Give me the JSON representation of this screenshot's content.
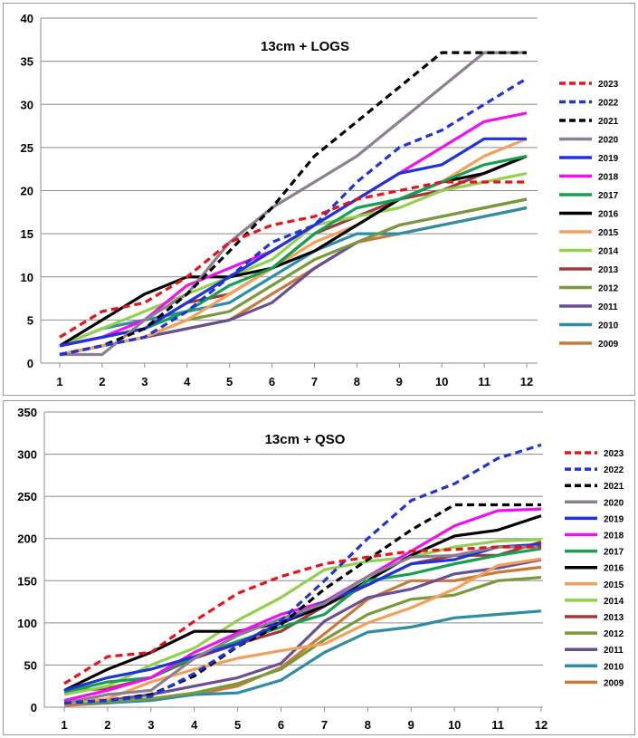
{
  "chart_data": [
    {
      "type": "line",
      "title": "13cm + LOGS",
      "xlabel": "",
      "ylabel": "",
      "ylim": [
        0,
        40
      ],
      "yticks": [
        0,
        5,
        10,
        15,
        20,
        25,
        30,
        35,
        40
      ],
      "categories": [
        "1",
        "2",
        "3",
        "4",
        "5",
        "6",
        "7",
        "8",
        "9",
        "10",
        "11",
        "12"
      ],
      "grid": "horizontal",
      "legend": "right",
      "series": [
        {
          "name": "2023",
          "color": "#e8121c",
          "dash": "dashed",
          "values": [
            3,
            6,
            7,
            10,
            14,
            16,
            17,
            19,
            20,
            21,
            21,
            21
          ]
        },
        {
          "name": "2022",
          "color": "#1f33d6",
          "dash": "dashed",
          "values": [
            1,
            2,
            3,
            6,
            10,
            14,
            16,
            21,
            25,
            27,
            30,
            33
          ]
        },
        {
          "name": "2021",
          "color": "#000000",
          "dash": "dashed",
          "values": [
            1,
            2,
            4,
            8,
            13,
            18,
            24,
            28,
            32,
            36,
            36,
            36
          ]
        },
        {
          "name": "2020",
          "color": "#8c7f91",
          "dash": "solid",
          "values": [
            1,
            1,
            5,
            8,
            14,
            18,
            21,
            24,
            28,
            32,
            36,
            36
          ]
        },
        {
          "name": "2019",
          "color": "#1f33d6",
          "dash": "solid",
          "values": [
            2,
            3,
            4,
            7,
            10,
            13,
            16,
            19,
            22,
            23,
            26,
            26
          ]
        },
        {
          "name": "2018",
          "color": "#ee11ee",
          "dash": "solid",
          "values": [
            2,
            3,
            5,
            9,
            11,
            13,
            16,
            19,
            22,
            25,
            28,
            29
          ]
        },
        {
          "name": "2017",
          "color": "#14a050",
          "dash": "solid",
          "values": [
            2,
            3,
            4,
            6,
            9,
            11,
            15,
            18,
            19,
            21,
            23,
            24
          ]
        },
        {
          "name": "2016",
          "color": "#000000",
          "dash": "solid",
          "values": [
            2,
            5,
            8,
            10,
            10,
            11,
            13,
            16,
            19,
            21,
            22,
            24
          ]
        },
        {
          "name": "2015",
          "color": "#f2a05a",
          "dash": "solid",
          "values": [
            1,
            2,
            3,
            5,
            8,
            11,
            14,
            16,
            19,
            21,
            24,
            26
          ]
        },
        {
          "name": "2014",
          "color": "#92d050",
          "dash": "solid",
          "values": [
            2,
            4,
            6,
            8,
            10,
            12,
            16,
            17,
            18,
            20,
            21,
            22
          ]
        },
        {
          "name": "2013",
          "color": "#a0393c",
          "dash": "solid",
          "values": [
            2,
            3,
            4,
            7,
            8,
            11,
            15,
            17,
            19,
            20,
            22,
            24
          ]
        },
        {
          "name": "2012",
          "color": "#7a9a3a",
          "dash": "solid",
          "values": [
            1,
            2,
            3,
            5,
            6,
            9,
            12,
            14,
            16,
            17,
            18,
            19
          ]
        },
        {
          "name": "2011",
          "color": "#6a4e94",
          "dash": "solid",
          "values": [
            1,
            2,
            3,
            4,
            5,
            7,
            11,
            14,
            16,
            17,
            18,
            19
          ]
        },
        {
          "name": "2010",
          "color": "#2e8ca6",
          "dash": "solid",
          "values": [
            2,
            4,
            5,
            6,
            7,
            10,
            13,
            15,
            15,
            16,
            17,
            18
          ]
        },
        {
          "name": "2009",
          "color": "#c87a3a",
          "dash": "solid",
          "values": [
            1,
            2,
            3,
            4,
            5,
            8,
            11,
            14,
            15,
            16,
            17,
            18
          ]
        }
      ]
    },
    {
      "type": "line",
      "title": "13cm + QSO",
      "xlabel": "",
      "ylabel": "",
      "ylim": [
        0,
        350
      ],
      "yticks": [
        0,
        50,
        100,
        150,
        200,
        250,
        300,
        350
      ],
      "categories": [
        "1",
        "2",
        "3",
        "4",
        "5",
        "6",
        "7",
        "8",
        "9",
        "10",
        "11",
        "12"
      ],
      "grid": "horizontal",
      "legend": "right",
      "series": [
        {
          "name": "2023",
          "color": "#e8121c",
          "dash": "dashed",
          "values": [
            28,
            60,
            65,
            102,
            135,
            155,
            170,
            178,
            185,
            187,
            190,
            190
          ]
        },
        {
          "name": "2022",
          "color": "#1f33d6",
          "dash": "dashed",
          "values": [
            5,
            8,
            13,
            40,
            73,
            103,
            150,
            200,
            245,
            265,
            295,
            311
          ]
        },
        {
          "name": "2021",
          "color": "#000000",
          "dash": "dashed",
          "values": [
            5,
            8,
            15,
            37,
            72,
            98,
            140,
            175,
            210,
            240,
            240,
            240
          ]
        },
        {
          "name": "2020",
          "color": "#8c7f91",
          "dash": "solid",
          "values": [
            5,
            15,
            20,
            58,
            85,
            105,
            123,
            155,
            178,
            180,
            190,
            190
          ]
        },
        {
          "name": "2019",
          "color": "#1f33d6",
          "dash": "solid",
          "values": [
            20,
            35,
            45,
            60,
            75,
            100,
            125,
            145,
            170,
            175,
            190,
            193
          ]
        },
        {
          "name": "2018",
          "color": "#ee11ee",
          "dash": "solid",
          "values": [
            8,
            20,
            35,
            65,
            88,
            110,
            125,
            155,
            185,
            215,
            233,
            235
          ]
        },
        {
          "name": "2017",
          "color": "#14a050",
          "dash": "solid",
          "values": [
            18,
            30,
            35,
            60,
            78,
            95,
            110,
            150,
            158,
            170,
            180,
            188
          ]
        },
        {
          "name": "2016",
          "color": "#000000",
          "dash": "solid",
          "values": [
            20,
            45,
            65,
            90,
            90,
            100,
            120,
            150,
            180,
            203,
            210,
            227
          ]
        },
        {
          "name": "2015",
          "color": "#f2a05a",
          "dash": "solid",
          "values": [
            5,
            10,
            30,
            45,
            58,
            67,
            75,
            100,
            118,
            140,
            168,
            176
          ]
        },
        {
          "name": "2014",
          "color": "#92d050",
          "dash": "solid",
          "values": [
            15,
            25,
            50,
            70,
            103,
            130,
            163,
            173,
            178,
            190,
            197,
            199
          ]
        },
        {
          "name": "2013",
          "color": "#a0393c",
          "dash": "solid",
          "values": [
            20,
            22,
            35,
            58,
            75,
            90,
            120,
            145,
            170,
            180,
            180,
            196
          ]
        },
        {
          "name": "2012",
          "color": "#7a9a3a",
          "dash": "solid",
          "values": [
            5,
            7,
            10,
            17,
            28,
            45,
            80,
            110,
            128,
            133,
            150,
            154
          ]
        },
        {
          "name": "2011",
          "color": "#6a4e94",
          "dash": "solid",
          "values": [
            5,
            8,
            15,
            25,
            35,
            52,
            102,
            130,
            140,
            158,
            165,
            175
          ]
        },
        {
          "name": "2010",
          "color": "#2e8ca6",
          "dash": "solid",
          "values": [
            5,
            5,
            8,
            15,
            17,
            32,
            65,
            89,
            95,
            106,
            110,
            114
          ]
        },
        {
          "name": "2009",
          "color": "#c87a3a",
          "dash": "solid",
          "values": [
            2,
            5,
            10,
            15,
            25,
            47,
            87,
            128,
            150,
            150,
            160,
            166
          ]
        }
      ]
    }
  ]
}
